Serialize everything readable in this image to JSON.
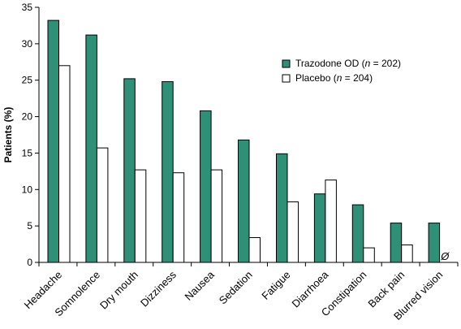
{
  "chart_data": {
    "type": "bar",
    "ylabel": "Patients (%)",
    "ylim": [
      0,
      35
    ],
    "yticks": [
      0,
      5,
      10,
      15,
      20,
      25,
      30,
      35
    ],
    "categories": [
      "Headache",
      "Somnolence",
      "Dry mouth",
      "Dizziness",
      "Nausea",
      "Sedation",
      "Fatigue",
      "Diarrhoea",
      "Constipation",
      "Back pain",
      "Blurred vision"
    ],
    "series": [
      {
        "name": "Trazodone OD",
        "n_label": "n",
        "n_value": " = 202)",
        "color": "#2e9077",
        "values": [
          33.2,
          31.2,
          25.2,
          24.8,
          20.8,
          16.8,
          14.9,
          9.4,
          7.9,
          5.4,
          5.4
        ]
      },
      {
        "name": "Placebo",
        "n_label": "n",
        "n_value": " = 204)",
        "color": "#ffffff",
        "values": [
          27.0,
          15.7,
          12.7,
          12.3,
          12.7,
          3.4,
          8.3,
          11.3,
          2.0,
          2.4,
          null
        ]
      }
    ],
    "missing_marker": "Ø",
    "legend": "top-right",
    "grid": false
  }
}
